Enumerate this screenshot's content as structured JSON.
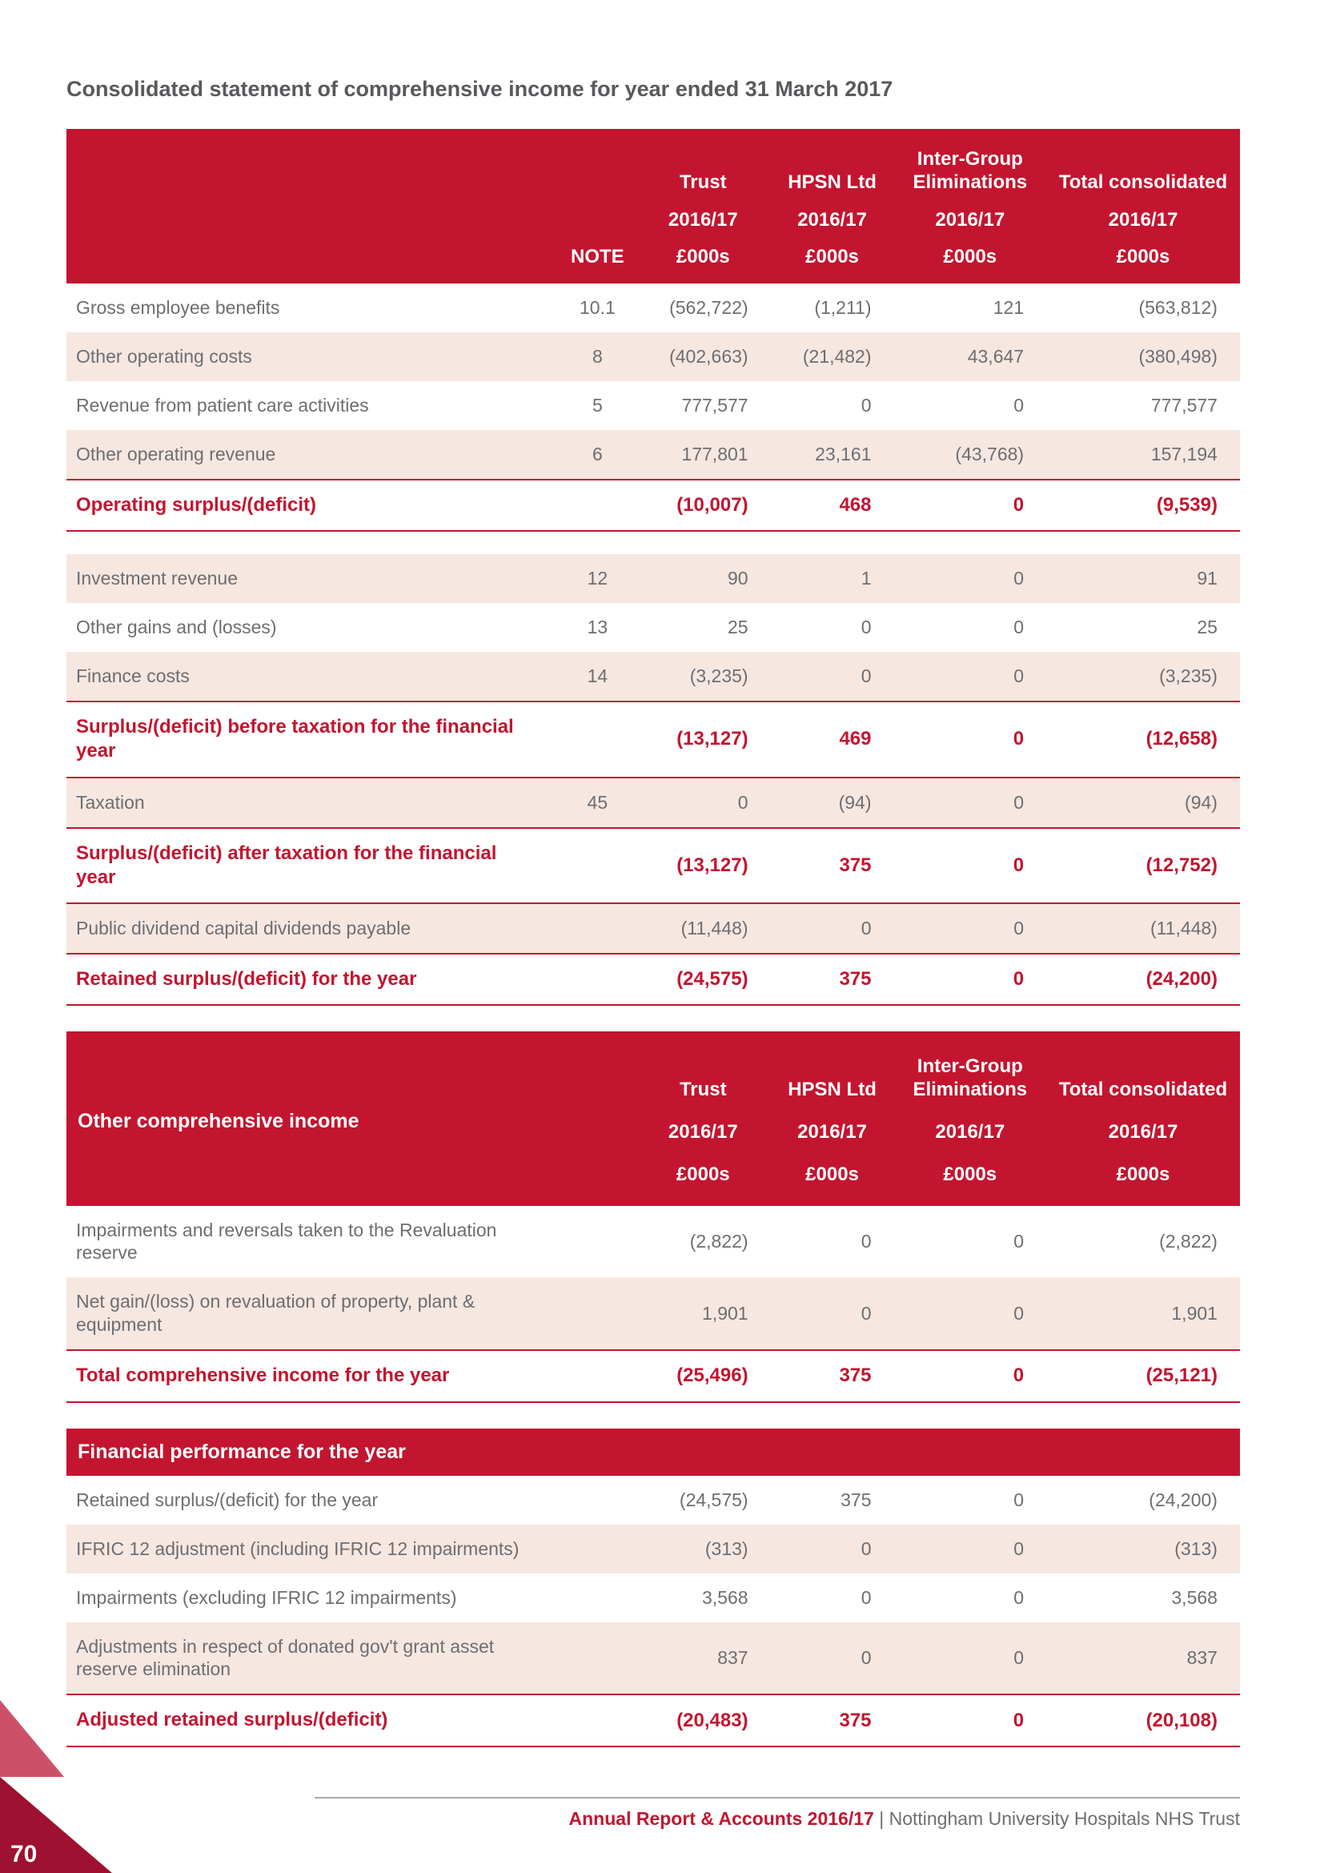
{
  "page": {
    "title": "Consolidated statement of comprehensive income for year ended 31 March 2017",
    "page_number": "70",
    "footer": {
      "report": "Annual Report & Accounts 2016/17",
      "separator": "|",
      "trust": "Nottingham University Hospitals NHS Trust"
    },
    "colors": {
      "header_red": "#c3152f",
      "row_pink": "#f6e7e1",
      "text_gray": "#6d6e71",
      "corner_dark": "#9e1130",
      "corner_light": "#cc5168"
    }
  },
  "tables": [
    {
      "id": "income-statement",
      "title": "",
      "header": {
        "note_label": "NOTE",
        "groups": [
          "Trust",
          "HPSN Ltd",
          "Inter-Group Eliminations",
          "Total consolidated"
        ],
        "years": [
          "2016/17",
          "2016/17",
          "2016/17",
          "2016/17"
        ],
        "units": [
          "£000s",
          "£000s",
          "£000s",
          "£000s"
        ]
      },
      "rows": [
        {
          "label": "Gross employee benefits",
          "note": "10.1",
          "values": [
            "(562,722)",
            "(1,211)",
            "121",
            "(563,812)"
          ]
        },
        {
          "label": "Other operating costs",
          "note": "8",
          "values": [
            "(402,663)",
            "(21,482)",
            "43,647",
            "(380,498)"
          ]
        },
        {
          "label": "Revenue from patient care activities",
          "note": "5",
          "values": [
            "777,577",
            "0",
            "0",
            "777,577"
          ]
        },
        {
          "label": "Other operating revenue",
          "note": "6",
          "values": [
            "177,801",
            "23,161",
            "(43,768)",
            "157,194"
          ]
        },
        {
          "label": "Operating surplus/(deficit)",
          "note": "",
          "values": [
            "(10,007)",
            "468",
            "0",
            "(9,539)"
          ],
          "bold": true
        },
        {
          "spacer": true
        },
        {
          "label": "Investment revenue",
          "note": "12",
          "values": [
            "90",
            "1",
            "0",
            "91"
          ]
        },
        {
          "label": "Other gains and (losses)",
          "note": "13",
          "values": [
            "25",
            "0",
            "0",
            "25"
          ]
        },
        {
          "label": "Finance costs",
          "note": "14",
          "values": [
            "(3,235)",
            "0",
            "0",
            "(3,235)"
          ]
        },
        {
          "label": "Surplus/(deficit) before taxation for the financial year",
          "note": "",
          "values": [
            "(13,127)",
            "469",
            "0",
            "(12,658)"
          ],
          "bold": true
        },
        {
          "label": "Taxation",
          "note": "45",
          "values": [
            "0",
            "(94)",
            "0",
            "(94)"
          ]
        },
        {
          "label": "Surplus/(deficit) after taxation for the financial year",
          "note": "",
          "values": [
            "(13,127)",
            "375",
            "0",
            "(12,752)"
          ],
          "bold": true
        },
        {
          "label": "Public dividend capital dividends payable",
          "note": "",
          "values": [
            "(11,448)",
            "0",
            "0",
            "(11,448)"
          ]
        },
        {
          "label": "Retained surplus/(deficit) for the year",
          "note": "",
          "values": [
            "(24,575)",
            "375",
            "0",
            "(24,200)"
          ],
          "bold": true
        }
      ]
    },
    {
      "id": "other-comprehensive-income",
      "title": "Other comprehensive income",
      "header": {
        "note_label": "",
        "groups": [
          "Trust",
          "HPSN Ltd",
          "Inter-Group Eliminations",
          "Total consolidated"
        ],
        "years": [
          "2016/17",
          "2016/17",
          "2016/17",
          "2016/17"
        ],
        "units": [
          "£000s",
          "£000s",
          "£000s",
          "£000s"
        ]
      },
      "rows": [
        {
          "label": "Impairments and reversals taken to the Revaluation reserve",
          "note": "",
          "values": [
            "(2,822)",
            "0",
            "0",
            "(2,822)"
          ]
        },
        {
          "label": "Net gain/(loss) on revaluation of property, plant & equipment",
          "note": "",
          "values": [
            "1,901",
            "0",
            "0",
            "1,901"
          ]
        },
        {
          "label": "Total comprehensive income for the year",
          "note": "",
          "values": [
            "(25,496)",
            "375",
            "0",
            "(25,121)"
          ],
          "bold": true
        }
      ]
    },
    {
      "id": "financial-performance",
      "title": "Financial performance for the year",
      "rows": [
        {
          "label": "Retained surplus/(deficit) for the year",
          "note": "",
          "values": [
            "(24,575)",
            "375",
            "0",
            "(24,200)"
          ]
        },
        {
          "label": "IFRIC 12 adjustment (including IFRIC 12 impairments)",
          "note": "",
          "values": [
            "(313)",
            "0",
            "0",
            "(313)"
          ]
        },
        {
          "label": "Impairments (excluding IFRIC 12 impairments)",
          "note": "",
          "values": [
            "3,568",
            "0",
            "0",
            "3,568"
          ]
        },
        {
          "label": "Adjustments in respect of donated gov't grant asset reserve elimination",
          "note": "",
          "values": [
            "837",
            "0",
            "0",
            "837"
          ]
        },
        {
          "label": "Adjusted retained surplus/(deficit)",
          "note": "",
          "values": [
            "(20,483)",
            "375",
            "0",
            "(20,108)"
          ],
          "bold": true
        }
      ]
    }
  ]
}
